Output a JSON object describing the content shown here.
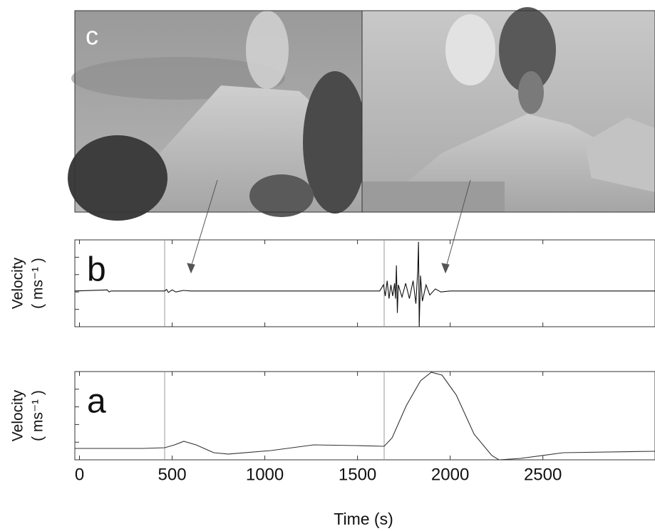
{
  "photo_label": "c",
  "chart_data": [
    {
      "type": "line",
      "panel_label": "b",
      "y_label": "Velocity",
      "y_unit": "( ms⁻¹ )",
      "color": "#111111",
      "xlim": [
        -25,
        3105
      ],
      "xticks": [
        0,
        500,
        1000,
        1500,
        2000,
        2500
      ],
      "ylim": [
        -0.7,
        1.0
      ],
      "x": [
        -25,
        150,
        160,
        170,
        460,
        470,
        480,
        500,
        520,
        560,
        600,
        1620,
        1640,
        1650,
        1660,
        1670,
        1680,
        1690,
        1700,
        1705,
        1710,
        1715,
        1720,
        1740,
        1760,
        1780,
        1800,
        1815,
        1825,
        1829,
        1833,
        1840,
        1850,
        1870,
        1890,
        1920,
        1950,
        2000,
        3105
      ],
      "values": [
        0,
        0.02,
        -0.02,
        0,
        0,
        0.03,
        -0.03,
        0.02,
        -0.02,
        0.01,
        0,
        0,
        0.12,
        -0.1,
        0.2,
        -0.15,
        0.12,
        -0.1,
        0.15,
        -0.15,
        0.5,
        -0.43,
        0.12,
        -0.12,
        0.15,
        -0.15,
        0.2,
        -0.25,
        0.4,
        0.96,
        -0.7,
        0.3,
        -0.2,
        0.12,
        -0.08,
        0.04,
        -0.02,
        0,
        0
      ]
    },
    {
      "type": "line",
      "panel_label": "a",
      "y_label": "Velocity",
      "y_unit": "( ms⁻¹ )",
      "color": "#333333",
      "x_label": "Time (s)",
      "xlim": [
        -25,
        3105
      ],
      "xticks": [
        0,
        500,
        1000,
        1500,
        2000,
        2500
      ],
      "ylim": [
        0,
        1
      ],
      "x": [
        -25,
        340,
        460,
        513,
        563,
        629,
        725,
        802,
        1033,
        1263,
        1494,
        1644,
        1687,
        1763,
        1840,
        1898,
        1956,
        2033,
        2129,
        2225,
        2263,
        2379,
        2610,
        3105
      ],
      "values": [
        0.129,
        0.129,
        0.137,
        0.169,
        0.21,
        0.169,
        0.081,
        0.065,
        0.105,
        0.169,
        0.161,
        0.153,
        0.25,
        0.613,
        0.895,
        0.992,
        0.96,
        0.734,
        0.29,
        0.048,
        0,
        0.016,
        0.081,
        0.097
      ]
    }
  ]
}
